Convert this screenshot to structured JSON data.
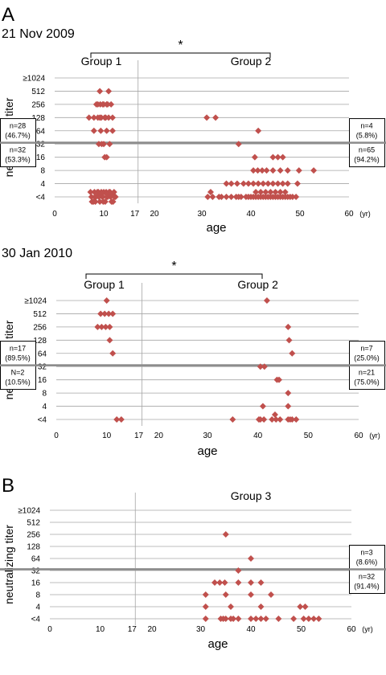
{
  "chart_data": [
    {
      "type": "scatter",
      "panel_letter": "A",
      "date_label": "21 Nov 2009",
      "group_labels": [
        "Group 1",
        "Group 2"
      ],
      "significance": "*",
      "ylabel": "neutralizing titer",
      "xlabel": "age",
      "x_unit": "(yr)",
      "x_ticks": [
        "0",
        "10",
        "17",
        "20",
        "30",
        "40",
        "50",
        "60"
      ],
      "y_ticks": [
        "<4",
        "4",
        "8",
        "16",
        "32",
        "64",
        "128",
        "256",
        "512",
        "≥1024"
      ],
      "xlim": [
        0,
        60
      ],
      "divider_x": 17,
      "threshold_titer": "32",
      "boxes": [
        {
          "position": "upper-left",
          "lines": [
            "n=28",
            "(46.7%)"
          ]
        },
        {
          "position": "lower-left",
          "lines": [
            "n=32",
            "(53.3%)"
          ]
        },
        {
          "position": "upper-right",
          "lines": [
            "n=4",
            "(5.8%)"
          ]
        },
        {
          "position": "lower-right",
          "lines": [
            "n=65",
            "(94.2%)"
          ]
        }
      ],
      "points": [
        [
          9.2,
          "512"
        ],
        [
          11,
          "512"
        ],
        [
          8.5,
          "256"
        ],
        [
          9.3,
          "256"
        ],
        [
          10,
          "256"
        ],
        [
          10.8,
          "256"
        ],
        [
          11.5,
          "256"
        ],
        [
          8.8,
          "256"
        ],
        [
          9.8,
          "256"
        ],
        [
          10.6,
          "256"
        ],
        [
          7,
          "128"
        ],
        [
          8,
          "128"
        ],
        [
          8.8,
          "128"
        ],
        [
          9.5,
          "128"
        ],
        [
          10.2,
          "128"
        ],
        [
          11,
          "128"
        ],
        [
          11.8,
          "128"
        ],
        [
          9.2,
          "128"
        ],
        [
          10.4,
          "128"
        ],
        [
          8,
          "64"
        ],
        [
          9.4,
          "64"
        ],
        [
          10.6,
          "64"
        ],
        [
          11.8,
          "64"
        ],
        [
          9,
          "32"
        ],
        [
          10,
          "32"
        ],
        [
          11.2,
          "32"
        ],
        [
          9.6,
          "32"
        ],
        [
          10.2,
          "16"
        ],
        [
          10.6,
          "16"
        ],
        [
          7.5,
          "<4"
        ],
        [
          8.2,
          "<4"
        ],
        [
          9,
          "<4"
        ],
        [
          9.8,
          "<4"
        ],
        [
          10.6,
          "<4"
        ],
        [
          11.4,
          "<4"
        ],
        [
          12.2,
          "<4"
        ],
        [
          7.3,
          "<4"
        ],
        [
          8.1,
          "<4"
        ],
        [
          8.9,
          "<4"
        ],
        [
          9.7,
          "<4"
        ],
        [
          10.5,
          "<4"
        ],
        [
          11.3,
          "<4"
        ],
        [
          12.1,
          "<4"
        ],
        [
          7.6,
          "<4"
        ],
        [
          8.4,
          "<4"
        ],
        [
          9.2,
          "<4"
        ],
        [
          10,
          "<4"
        ],
        [
          10.8,
          "<4"
        ],
        [
          11.6,
          "<4"
        ],
        [
          12.4,
          "<4"
        ],
        [
          7.9,
          "<4"
        ],
        [
          8.7,
          "<4"
        ],
        [
          9.5,
          "<4"
        ],
        [
          10.3,
          "<4"
        ],
        [
          11.1,
          "<4"
        ],
        [
          11.9,
          "<4"
        ],
        [
          8.3,
          "<4"
        ],
        [
          9.1,
          "<4"
        ],
        [
          9.9,
          "<4"
        ],
        [
          10.7,
          "<4"
        ],
        [
          11.5,
          "<4"
        ],
        [
          31,
          "128"
        ],
        [
          32.8,
          "128"
        ],
        [
          41.5,
          "64"
        ],
        [
          37.5,
          "32"
        ],
        [
          40.8,
          "16"
        ],
        [
          44.5,
          "16"
        ],
        [
          45.5,
          "16"
        ],
        [
          46.5,
          "16"
        ],
        [
          40.5,
          "8"
        ],
        [
          41.4,
          "8"
        ],
        [
          42.3,
          "8"
        ],
        [
          43.2,
          "8"
        ],
        [
          44.5,
          "8"
        ],
        [
          46,
          "8"
        ],
        [
          47.5,
          "8"
        ],
        [
          49.8,
          "8"
        ],
        [
          52.8,
          "8"
        ],
        [
          35,
          "4"
        ],
        [
          36,
          "4"
        ],
        [
          37.2,
          "4"
        ],
        [
          38.5,
          "4"
        ],
        [
          39.5,
          "4"
        ],
        [
          40.5,
          "4"
        ],
        [
          41.5,
          "4"
        ],
        [
          42.5,
          "4"
        ],
        [
          43.5,
          "4"
        ],
        [
          44.5,
          "4"
        ],
        [
          45.5,
          "4"
        ],
        [
          46.5,
          "4"
        ],
        [
          47.5,
          "4"
        ],
        [
          49.5,
          "4"
        ],
        [
          31.2,
          "<4"
        ],
        [
          32.2,
          "<4"
        ],
        [
          34,
          "<4"
        ],
        [
          35,
          "<4"
        ],
        [
          36,
          "<4"
        ],
        [
          37,
          "<4"
        ],
        [
          38,
          "<4"
        ],
        [
          39,
          "<4"
        ],
        [
          40,
          "<4"
        ],
        [
          41,
          "<4"
        ],
        [
          42,
          "<4"
        ],
        [
          43,
          "<4"
        ],
        [
          44,
          "<4"
        ],
        [
          45,
          "<4"
        ],
        [
          46,
          "<4"
        ],
        [
          47,
          "<4"
        ],
        [
          48,
          "<4"
        ],
        [
          49.2,
          "<4"
        ],
        [
          31.8,
          "<4"
        ],
        [
          33.5,
          "<4"
        ],
        [
          37.5,
          "<4"
        ],
        [
          39.5,
          "<4"
        ],
        [
          40.5,
          "<4"
        ],
        [
          41.5,
          "<4"
        ],
        [
          42.5,
          "<4"
        ],
        [
          43.5,
          "<4"
        ],
        [
          44.5,
          "<4"
        ],
        [
          45.5,
          "<4"
        ],
        [
          46.5,
          "<4"
        ],
        [
          47.5,
          "<4"
        ],
        [
          48.5,
          "<4"
        ],
        [
          41,
          "<4"
        ],
        [
          42,
          "<4"
        ],
        [
          43,
          "<4"
        ],
        [
          44,
          "<4"
        ],
        [
          45,
          "<4"
        ],
        [
          46,
          "<4"
        ],
        [
          47,
          "<4"
        ]
      ]
    },
    {
      "type": "scatter",
      "panel_letter": "",
      "date_label": "30 Jan 2010",
      "group_labels": [
        "Group 1",
        "Group 2"
      ],
      "significance": "*",
      "ylabel": "neutralizing titer",
      "xlabel": "age",
      "x_unit": "(yr)",
      "x_ticks": [
        "0",
        "10",
        "17",
        "20",
        "30",
        "40",
        "50",
        "60"
      ],
      "y_ticks": [
        "<4",
        "4",
        "8",
        "16",
        "32",
        "64",
        "128",
        "256",
        "512",
        "≥1024"
      ],
      "xlim": [
        0,
        60
      ],
      "divider_x": 17,
      "threshold_titer": "32",
      "boxes": [
        {
          "position": "upper-left",
          "lines": [
            "n=17",
            "(89.5%)"
          ]
        },
        {
          "position": "lower-left",
          "lines": [
            "N=2",
            "(10.5%)"
          ]
        },
        {
          "position": "upper-right",
          "lines": [
            "n=7",
            "(25.0%)"
          ]
        },
        {
          "position": "lower-right",
          "lines": [
            "n=21",
            "(75.0%)"
          ]
        }
      ],
      "points": [
        [
          10,
          "≥1024"
        ],
        [
          8.8,
          "512"
        ],
        [
          9.6,
          "512"
        ],
        [
          10.4,
          "512"
        ],
        [
          11.2,
          "512"
        ],
        [
          8.2,
          "256"
        ],
        [
          9,
          "256"
        ],
        [
          9.8,
          "256"
        ],
        [
          10.6,
          "256"
        ],
        [
          10.6,
          "128"
        ],
        [
          11.2,
          "64"
        ],
        [
          12,
          "<4"
        ],
        [
          12.9,
          "<4"
        ],
        [
          41.8,
          "≥1024"
        ],
        [
          46,
          "256"
        ],
        [
          46.2,
          "128"
        ],
        [
          46.8,
          "64"
        ],
        [
          40.5,
          "32"
        ],
        [
          41.3,
          "32"
        ],
        [
          43.8,
          "16"
        ],
        [
          44.2,
          "16"
        ],
        [
          46,
          "8"
        ],
        [
          41,
          "4"
        ],
        [
          46,
          "4"
        ],
        [
          35,
          "<4"
        ],
        [
          40.2,
          "<4"
        ],
        [
          41.2,
          "<4"
        ],
        [
          42.8,
          "<4"
        ],
        [
          43.6,
          "<4"
        ],
        [
          44.4,
          "<4"
        ],
        [
          46,
          "<4"
        ],
        [
          46.8,
          "<4"
        ],
        [
          47.6,
          "<4"
        ],
        [
          40.5,
          "<4"
        ],
        [
          43.4,
          "<4"
        ],
        [
          46.4,
          "<4"
        ]
      ]
    },
    {
      "type": "scatter",
      "panel_letter": "B",
      "date_label": "",
      "group_labels": [
        "Group 3"
      ],
      "significance": "",
      "ylabel": "neutralizing titer",
      "xlabel": "age",
      "x_unit": "(yr)",
      "x_ticks": [
        "0",
        "10",
        "17",
        "20",
        "30",
        "40",
        "50",
        "60"
      ],
      "y_ticks": [
        "<4",
        "4",
        "8",
        "16",
        "32",
        "64",
        "128",
        "256",
        "512",
        "≥1024"
      ],
      "xlim": [
        0,
        60
      ],
      "divider_x": 17,
      "threshold_titer": "32",
      "boxes": [
        {
          "position": "upper-right",
          "lines": [
            "n=3",
            "(8.6%)"
          ]
        },
        {
          "position": "lower-right",
          "lines": [
            "n=32",
            "(91.4%)"
          ]
        }
      ],
      "points": [
        [
          35,
          "256"
        ],
        [
          40,
          "64"
        ],
        [
          37.5,
          "32"
        ],
        [
          32.8,
          "16"
        ],
        [
          33.8,
          "16"
        ],
        [
          34.8,
          "16"
        ],
        [
          37.5,
          "16"
        ],
        [
          40,
          "16"
        ],
        [
          42,
          "16"
        ],
        [
          31,
          "8"
        ],
        [
          35,
          "8"
        ],
        [
          40,
          "8"
        ],
        [
          44,
          "8"
        ],
        [
          31,
          "4"
        ],
        [
          36,
          "4"
        ],
        [
          42,
          "4"
        ],
        [
          49.8,
          "4"
        ],
        [
          50.8,
          "4"
        ],
        [
          31,
          "<4"
        ],
        [
          34,
          "<4"
        ],
        [
          35,
          "<4"
        ],
        [
          36,
          "<4"
        ],
        [
          37.5,
          "<4"
        ],
        [
          40,
          "<4"
        ],
        [
          41,
          "<4"
        ],
        [
          42,
          "<4"
        ],
        [
          43,
          "<4"
        ],
        [
          45.5,
          "<4"
        ],
        [
          48.5,
          "<4"
        ],
        [
          50.5,
          "<4"
        ],
        [
          52.5,
          "<4"
        ],
        [
          53.5,
          "<4"
        ],
        [
          34.5,
          "<4"
        ],
        [
          36.5,
          "<4"
        ],
        [
          51.5,
          "<4"
        ]
      ]
    }
  ],
  "colors": {
    "marker": "#c0504d",
    "gridline": "#a6a6a6",
    "threshold": "#8c8c8c"
  }
}
